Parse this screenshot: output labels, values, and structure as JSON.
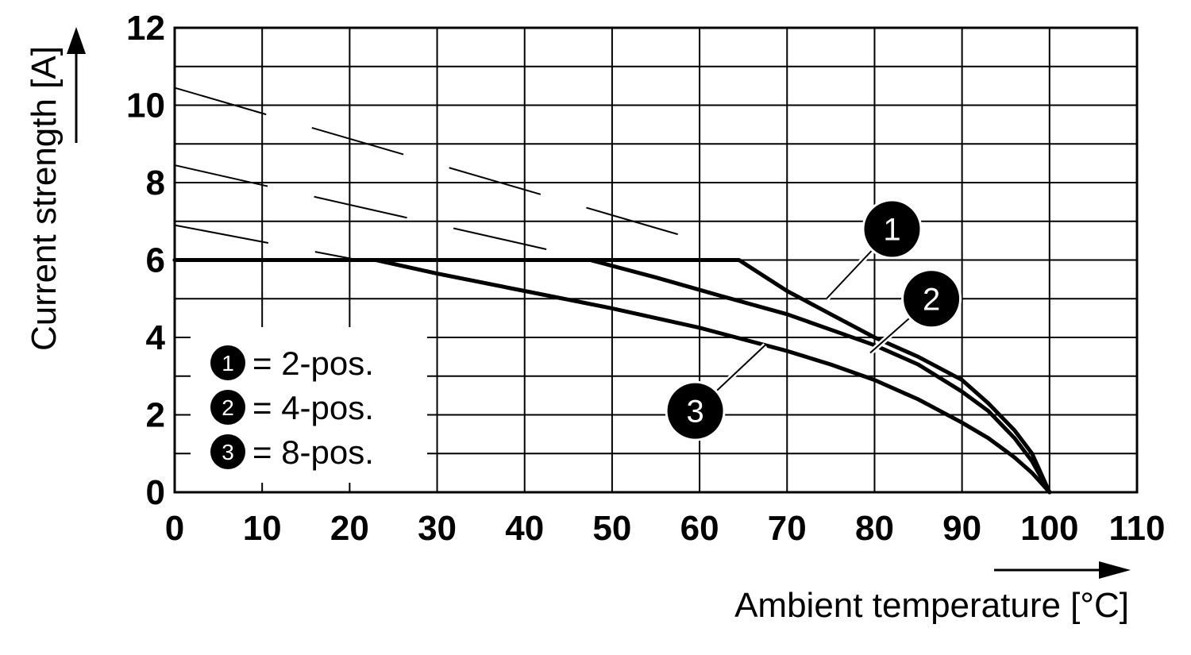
{
  "chart_data": {
    "type": "line",
    "xlabel": "Ambient temperature [°C]",
    "ylabel": "Current strength [A]",
    "xlim": [
      0,
      110
    ],
    "ylim": [
      0,
      12
    ],
    "x_ticks": [
      "0",
      "10",
      "20",
      "30",
      "40",
      "50",
      "60",
      "70",
      "80",
      "90",
      "100",
      "110"
    ],
    "y_ticks": [
      "0",
      "2",
      "4",
      "6",
      "8",
      "10",
      "12"
    ],
    "grid": true,
    "legend": {
      "placement": "lower-left",
      "entries": [
        {
          "marker": "1",
          "text": "= 2-pos."
        },
        {
          "marker": "2",
          "text": "= 4-pos."
        },
        {
          "marker": "3",
          "text": "= 8-pos."
        }
      ]
    },
    "series": [
      {
        "marker": "1",
        "x": [
          0,
          64.5,
          70,
          75,
          80,
          85,
          90,
          93,
          96,
          98,
          100
        ],
        "y": [
          6,
          6,
          5.2,
          4.6,
          4.0,
          3.5,
          2.9,
          2.3,
          1.6,
          1.0,
          0
        ]
      },
      {
        "marker": "2",
        "x": [
          0,
          47.5,
          55,
          62,
          70,
          75,
          80,
          85,
          90,
          93,
          96,
          98,
          100
        ],
        "y": [
          6,
          6,
          5.55,
          5.1,
          4.6,
          4.2,
          3.8,
          3.3,
          2.6,
          2.1,
          1.4,
          0.8,
          0
        ]
      },
      {
        "marker": "3",
        "x": [
          0,
          23,
          30,
          40,
          50,
          60,
          70,
          75,
          80,
          85,
          90,
          93,
          96,
          98,
          100
        ],
        "y": [
          6,
          6,
          5.65,
          5.2,
          4.75,
          4.25,
          3.65,
          3.3,
          2.9,
          2.4,
          1.8,
          1.4,
          0.9,
          0.5,
          0
        ]
      }
    ],
    "dashed_lines": [
      {
        "x": [
          0,
          60
        ],
        "y": [
          10.45,
          6.5
        ]
      },
      {
        "x": [
          0,
          44
        ],
        "y": [
          8.45,
          6.2
        ]
      },
      {
        "x": [
          0,
          21
        ],
        "y": [
          6.9,
          6.0
        ]
      }
    ],
    "callouts": [
      {
        "marker": "1",
        "x": 82,
        "y": 6.8,
        "target_x": 74.5,
        "target_y": 5.0
      },
      {
        "marker": "2",
        "x": 86.5,
        "y": 5.0,
        "target_x": 79.5,
        "target_y": 3.6
      },
      {
        "marker": "3",
        "x": 59.5,
        "y": 2.1,
        "target_x": 67.5,
        "target_y": 3.8
      }
    ]
  }
}
